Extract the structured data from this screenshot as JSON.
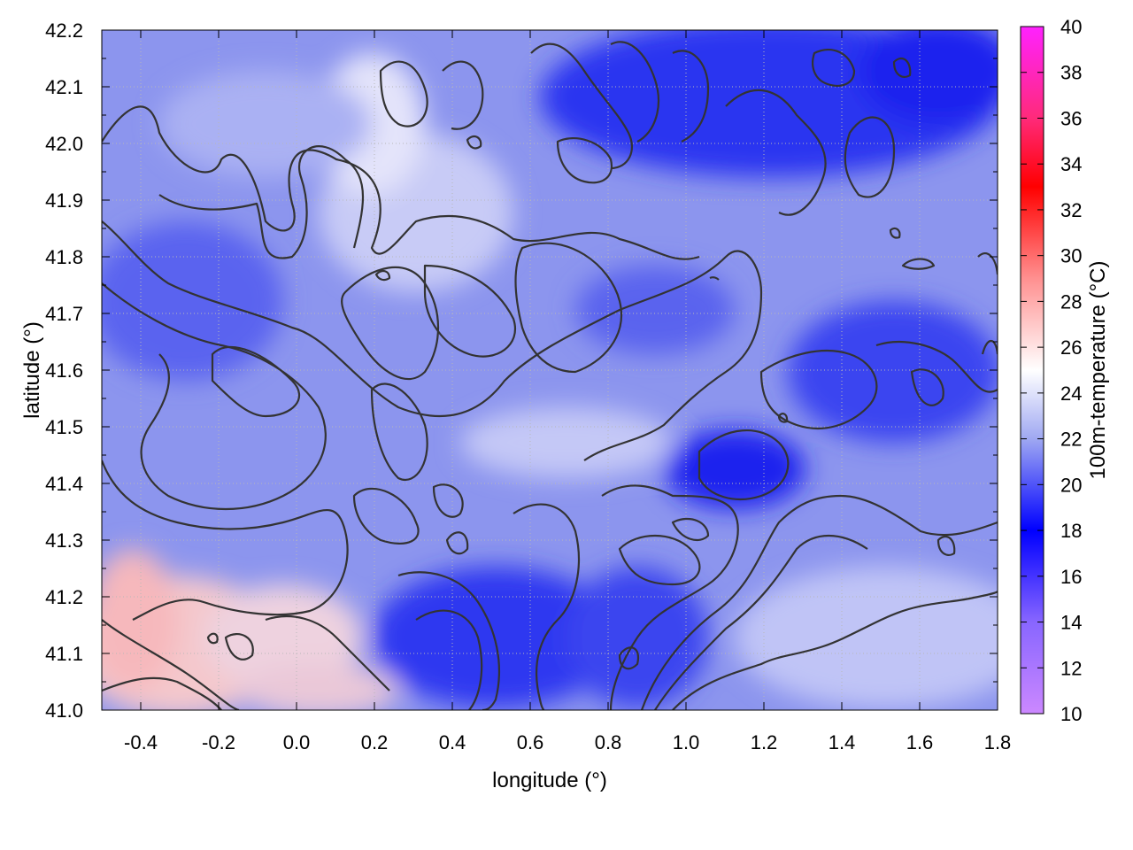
{
  "chart_data": {
    "type": "heatmap",
    "xlabel": "longitude (°)",
    "ylabel": "latitude (°)",
    "colorbar_label": "100m-temperature (°C)",
    "xlim": [
      -0.5,
      1.8
    ],
    "ylim": [
      41.0,
      42.2
    ],
    "x_ticks": [
      -0.4,
      -0.2,
      0.0,
      0.2,
      0.4,
      0.6,
      0.8,
      1.0,
      1.2,
      1.4,
      1.6,
      1.8
    ],
    "y_ticks": [
      41.0,
      41.1,
      41.2,
      41.3,
      41.4,
      41.5,
      41.6,
      41.7,
      41.8,
      41.9,
      42.0,
      42.1,
      42.2
    ],
    "x_tick_labels": [
      "-0.4",
      "-0.2",
      "0.0",
      "0.2",
      "0.4",
      "0.6",
      "0.8",
      "1.0",
      "1.2",
      "1.4",
      "1.6",
      "1.8"
    ],
    "y_tick_labels": [
      "41.0",
      "41.1",
      "41.2",
      "41.3",
      "41.4",
      "41.5",
      "41.6",
      "41.7",
      "41.8",
      "41.9",
      "42.0",
      "42.1",
      "42.2"
    ],
    "colorbar_range": [
      10,
      40
    ],
    "colorbar_ticks": [
      10,
      12,
      14,
      16,
      18,
      20,
      22,
      24,
      26,
      28,
      30,
      32,
      34,
      36,
      38,
      40
    ],
    "colorbar_tick_labels": [
      "10",
      "12",
      "14",
      "16",
      "18",
      "20",
      "22",
      "24",
      "26",
      "28",
      "30",
      "32",
      "34",
      "36",
      "38",
      "40"
    ],
    "colormap": [
      {
        "value": 10,
        "color": "#cc88ff"
      },
      {
        "value": 14,
        "color": "#8866ff"
      },
      {
        "value": 18,
        "color": "#0000ff"
      },
      {
        "value": 22,
        "color": "#9fa8f2"
      },
      {
        "value": 25,
        "color": "#ffffff"
      },
      {
        "value": 29,
        "color": "#ff9090"
      },
      {
        "value": 33,
        "color": "#ff0000"
      },
      {
        "value": 36,
        "color": "#ff2a7a"
      },
      {
        "value": 40,
        "color": "#ff22ff"
      }
    ],
    "grid": true,
    "approx_field_regions": [
      {
        "region": "northeast (lon 0.6 to 1.8, lat 41.9 to 42.2)",
        "temperature_c": 18
      },
      {
        "region": "central east (lon 1.0 to 1.2, lat 41.35 to 41.5)",
        "temperature_c": 18
      },
      {
        "region": "southwest (lon -0.5 to 0.1, lat 41.0 to 41.25)",
        "temperature_c": 27
      },
      {
        "region": "central (lon 0.2 to 0.8, lat 41.5 to 41.9)",
        "temperature_c": 22
      },
      {
        "region": "southeast (lon 1.2 to 1.8, lat 41.0 to 41.2)",
        "temperature_c": 23
      },
      {
        "region": "west (lon -0.5 to 0.1, lat 41.4 to 41.9)",
        "temperature_c": 20
      }
    ]
  }
}
